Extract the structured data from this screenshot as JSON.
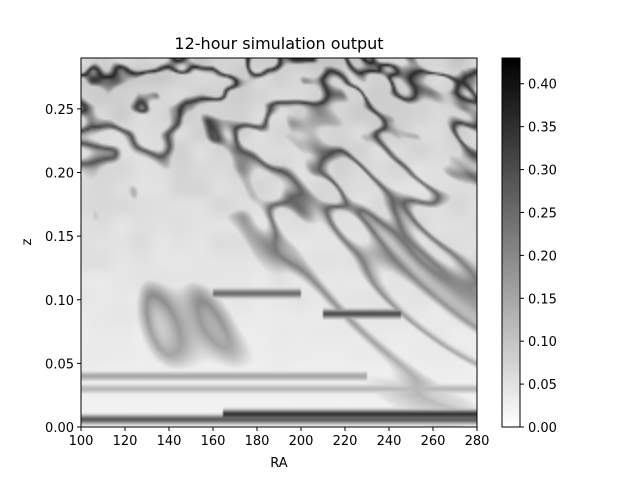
{
  "chart_data": {
    "type": "heatmap",
    "title": "12-hour simulation output",
    "xlabel": "RA",
    "ylabel": "z",
    "xlim": [
      100,
      280
    ],
    "ylim": [
      0.0,
      0.29
    ],
    "xticks": [
      100,
      120,
      140,
      160,
      180,
      200,
      220,
      240,
      260,
      280
    ],
    "xtick_labels": [
      "100",
      "120",
      "140",
      "160",
      "180",
      "200",
      "220",
      "240",
      "260",
      "280"
    ],
    "yticks": [
      0.0,
      0.05,
      0.1,
      0.15,
      0.2,
      0.25
    ],
    "ytick_labels": [
      "0.00",
      "0.05",
      "0.10",
      "0.15",
      "0.20",
      "0.25"
    ],
    "colormap": "gray_r",
    "colorbar": {
      "range": [
        0.0,
        0.43
      ],
      "ticks": [
        0.0,
        0.05,
        0.1,
        0.15,
        0.2,
        0.25,
        0.3,
        0.35,
        0.4
      ],
      "tick_labels": [
        "0.00",
        "0.05",
        "0.10",
        "0.15",
        "0.20",
        "0.25",
        "0.30",
        "0.35",
        "0.40"
      ],
      "position": "right"
    },
    "grid": false,
    "field_description_values": {
      "background_level_low_z": 0.02,
      "background_level_high_z": 0.08,
      "filament_peak_level": 0.3,
      "dark_streaks": [
        {
          "ra_start": 100,
          "ra_end": 280,
          "z": 0.006,
          "value": 0.28
        },
        {
          "ra_start": 165,
          "ra_end": 280,
          "z": 0.01,
          "value": 0.35
        },
        {
          "ra_start": 100,
          "ra_end": 280,
          "z": 0.03,
          "value": 0.12
        },
        {
          "ra_start": 100,
          "ra_end": 230,
          "z": 0.04,
          "value": 0.15
        },
        {
          "ra_start": 210,
          "ra_end": 245,
          "z": 0.089,
          "value": 0.3
        },
        {
          "ra_start": 160,
          "ra_end": 200,
          "z": 0.105,
          "value": 0.25
        }
      ]
    }
  }
}
